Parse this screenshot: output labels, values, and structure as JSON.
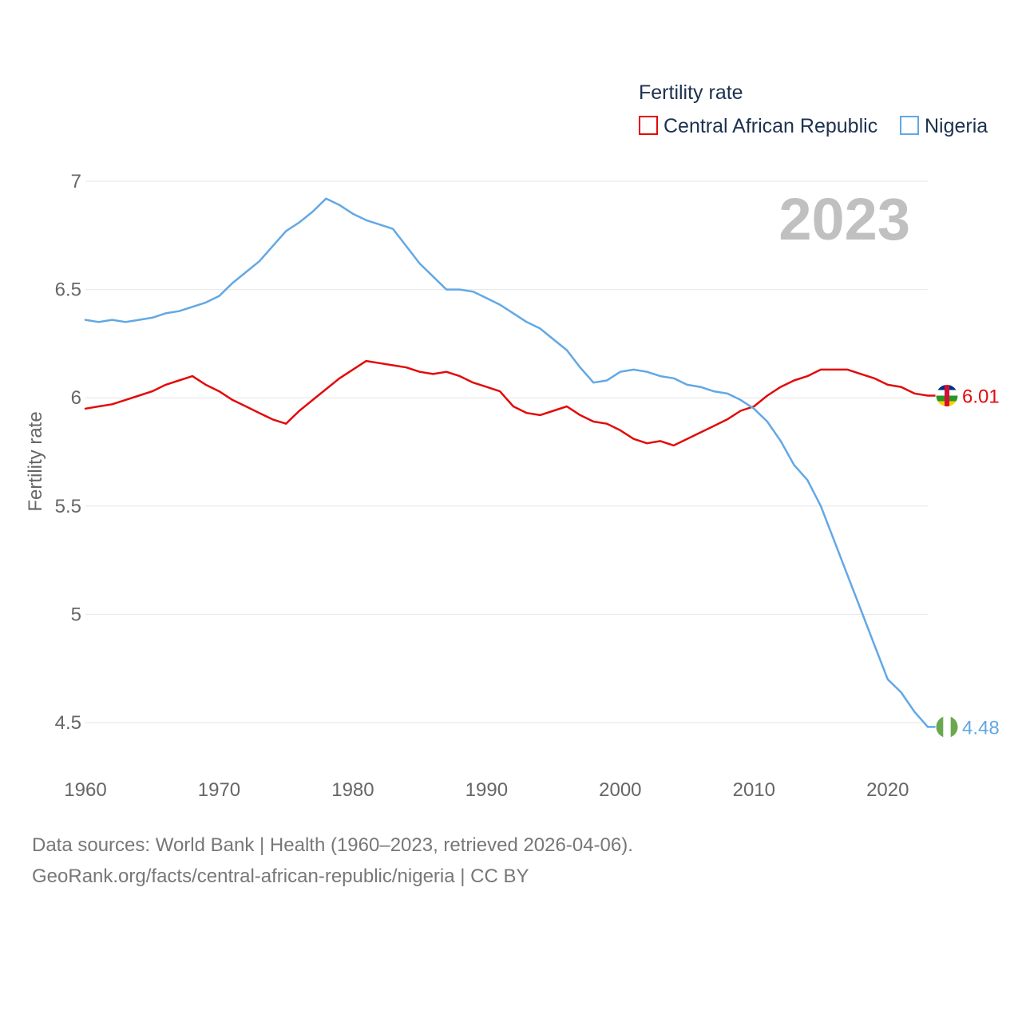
{
  "chart_data": {
    "type": "line",
    "title": "Fertility rate",
    "ylabel": "Fertility rate",
    "xlabel": "",
    "year_label": "2023",
    "x_ticks": [
      1960,
      1970,
      1980,
      1990,
      2000,
      2010,
      2020
    ],
    "y_ticks": [
      4.5,
      5,
      5.5,
      6,
      6.5,
      7
    ],
    "xlim": [
      1960,
      2023
    ],
    "ylim": [
      4.5,
      7.0
    ],
    "grid": true,
    "legend_position": "top-right",
    "series": [
      {
        "name": "Central African Republic",
        "color": "#e30a0a",
        "flag_icon": "central-african-republic-flag-icon",
        "end_label": "6.01",
        "x": [
          1960,
          1961,
          1962,
          1963,
          1964,
          1965,
          1966,
          1967,
          1968,
          1969,
          1970,
          1971,
          1972,
          1973,
          1974,
          1975,
          1976,
          1977,
          1978,
          1979,
          1980,
          1981,
          1982,
          1983,
          1984,
          1985,
          1986,
          1987,
          1988,
          1989,
          1990,
          1991,
          1992,
          1993,
          1994,
          1995,
          1996,
          1997,
          1998,
          1999,
          2000,
          2001,
          2002,
          2003,
          2004,
          2005,
          2006,
          2007,
          2008,
          2009,
          2010,
          2011,
          2012,
          2013,
          2014,
          2015,
          2016,
          2017,
          2018,
          2019,
          2020,
          2021,
          2022,
          2023
        ],
        "values": [
          5.95,
          5.96,
          5.97,
          5.99,
          6.01,
          6.03,
          6.06,
          6.08,
          6.1,
          6.06,
          6.03,
          5.99,
          5.96,
          5.93,
          5.9,
          5.88,
          5.94,
          5.99,
          6.04,
          6.09,
          6.13,
          6.17,
          6.16,
          6.15,
          6.14,
          6.12,
          6.11,
          6.12,
          6.1,
          6.07,
          6.05,
          6.03,
          5.96,
          5.93,
          5.92,
          5.94,
          5.96,
          5.92,
          5.89,
          5.88,
          5.85,
          5.81,
          5.79,
          5.8,
          5.78,
          5.81,
          5.84,
          5.87,
          5.9,
          5.94,
          5.96,
          6.01,
          6.05,
          6.08,
          6.1,
          6.13,
          6.13,
          6.13,
          6.11,
          6.09,
          6.06,
          6.05,
          6.02,
          6.01
        ]
      },
      {
        "name": "Nigeria",
        "color": "#62a8e5",
        "flag_icon": "nigeria-flag-icon",
        "end_label": "4.48",
        "x": [
          1960,
          1961,
          1962,
          1963,
          1964,
          1965,
          1966,
          1967,
          1968,
          1969,
          1970,
          1971,
          1972,
          1973,
          1974,
          1975,
          1976,
          1977,
          1978,
          1979,
          1980,
          1981,
          1982,
          1983,
          1984,
          1985,
          1986,
          1987,
          1988,
          1989,
          1990,
          1991,
          1992,
          1993,
          1994,
          1995,
          1996,
          1997,
          1998,
          1999,
          2000,
          2001,
          2002,
          2003,
          2004,
          2005,
          2006,
          2007,
          2008,
          2009,
          2010,
          2011,
          2012,
          2013,
          2014,
          2015,
          2016,
          2017,
          2018,
          2019,
          2020,
          2021,
          2022,
          2023
        ],
        "values": [
          6.36,
          6.35,
          6.36,
          6.35,
          6.36,
          6.37,
          6.39,
          6.4,
          6.42,
          6.44,
          6.47,
          6.53,
          6.58,
          6.63,
          6.7,
          6.77,
          6.81,
          6.86,
          6.92,
          6.89,
          6.85,
          6.82,
          6.8,
          6.78,
          6.7,
          6.62,
          6.56,
          6.5,
          6.5,
          6.49,
          6.46,
          6.43,
          6.39,
          6.35,
          6.32,
          6.27,
          6.22,
          6.14,
          6.07,
          6.08,
          6.12,
          6.13,
          6.12,
          6.1,
          6.09,
          6.06,
          6.05,
          6.03,
          6.02,
          5.99,
          5.95,
          5.89,
          5.8,
          5.69,
          5.62,
          5.5,
          5.34,
          5.18,
          5.02,
          4.86,
          4.7,
          4.64,
          4.55,
          4.48
        ]
      }
    ]
  },
  "source": {
    "line1": "Data sources: World Bank | Health (1960–2023, retrieved 2026-04-06).",
    "line2": "GeoRank.org/facts/central-african-republic/nigeria | CC BY"
  }
}
